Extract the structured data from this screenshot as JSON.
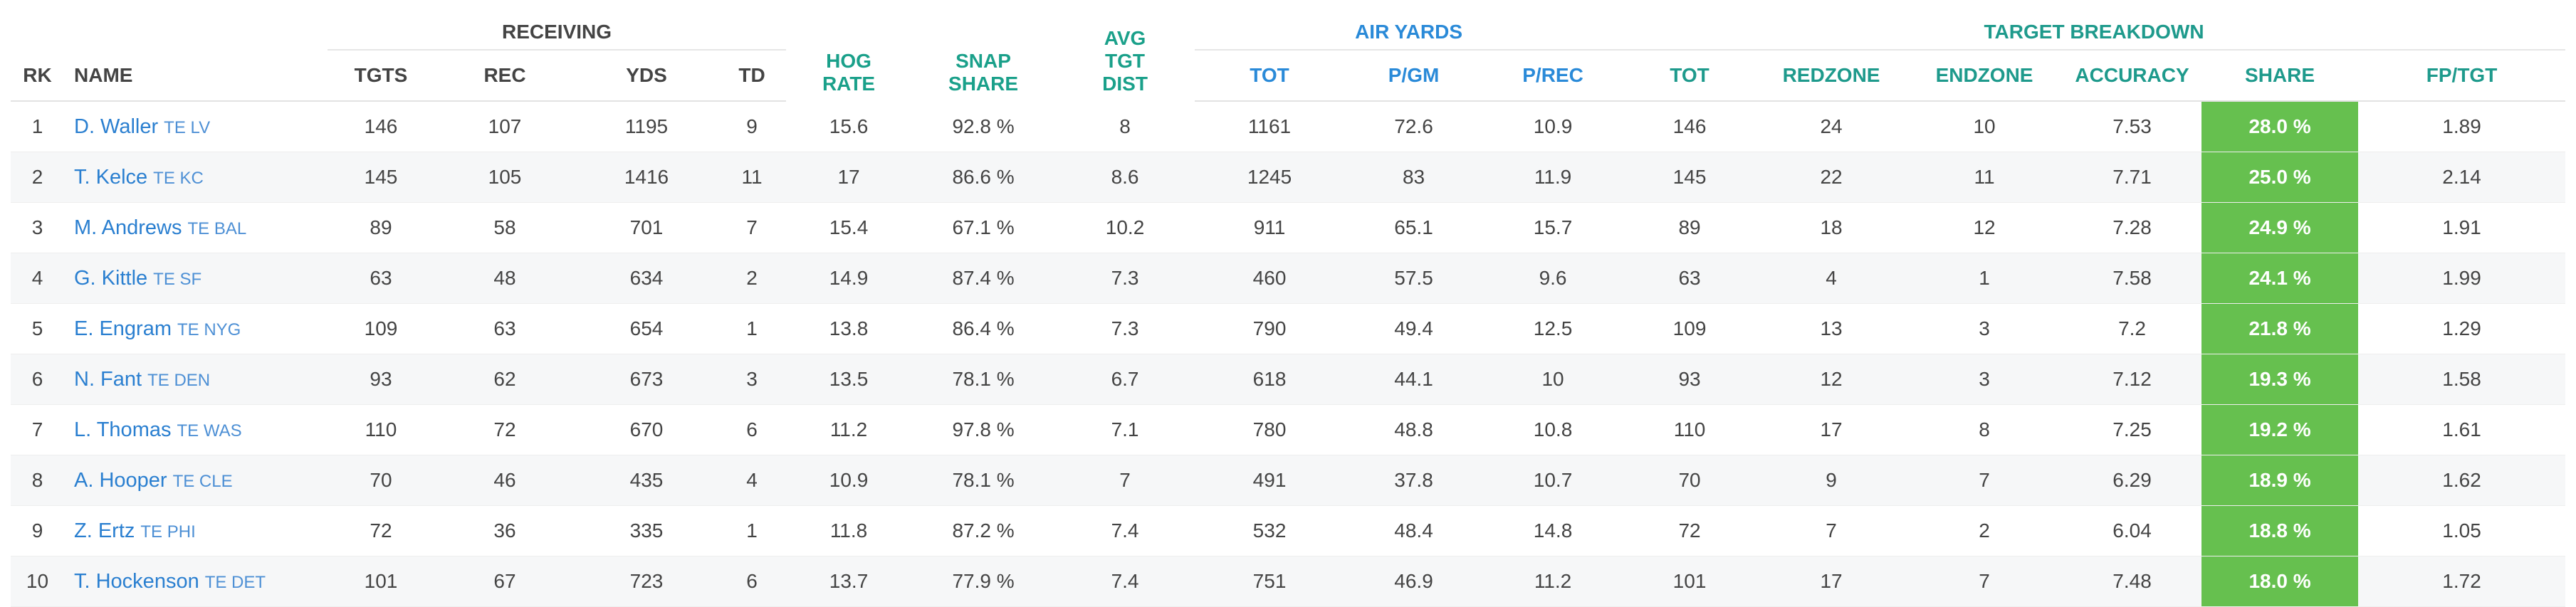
{
  "headers": {
    "groups": {
      "receiving": "RECEIVING",
      "hog_rate_line1": "HOG",
      "hog_rate_line2": "RATE",
      "snap_share_line1": "SNAP",
      "snap_share_line2": "SHARE",
      "avg_tgt_line1": "AVG",
      "avg_tgt_line2": "TGT",
      "avg_tgt_line3": "DIST",
      "air_yards": "AIR YARDS",
      "target_breakdown": "TARGET BREAKDOWN"
    },
    "columns": {
      "rk": "RK",
      "name": "NAME",
      "tgts": "TGTS",
      "rec": "REC",
      "yds": "YDS",
      "td": "TD",
      "air_tot": "TOT",
      "air_pgm": "P/GM",
      "air_prec": "P/REC",
      "tb_tot": "TOT",
      "redzone": "REDZONE",
      "endzone": "ENDZONE",
      "accuracy": "ACCURACY",
      "share": "SHARE",
      "fp_tgt": "FP/TGT"
    }
  },
  "colors": {
    "receiving_header": "#444444",
    "metric_header": "#1aa08a",
    "air_yards_header": "#2a8ad8",
    "target_breakdown_header": "#1e9a8c",
    "player_link": "#2a7fd0",
    "share_highlight": "#66c04f"
  },
  "rows": [
    {
      "rk": "1",
      "name": "D. Waller",
      "pos": "TE",
      "team": "LV",
      "tgts": "146",
      "rec": "107",
      "yds": "1195",
      "td": "9",
      "hog": "15.6",
      "snap": "92.8 %",
      "avg": "8",
      "air_tot": "1161",
      "air_pgm": "72.6",
      "air_prec": "10.9",
      "tb_tot": "146",
      "redzone": "24",
      "endzone": "10",
      "accuracy": "7.53",
      "share": "28.0 %",
      "fp_tgt": "1.89"
    },
    {
      "rk": "2",
      "name": "T. Kelce",
      "pos": "TE",
      "team": "KC",
      "tgts": "145",
      "rec": "105",
      "yds": "1416",
      "td": "11",
      "hog": "17",
      "snap": "86.6 %",
      "avg": "8.6",
      "air_tot": "1245",
      "air_pgm": "83",
      "air_prec": "11.9",
      "tb_tot": "145",
      "redzone": "22",
      "endzone": "11",
      "accuracy": "7.71",
      "share": "25.0 %",
      "fp_tgt": "2.14"
    },
    {
      "rk": "3",
      "name": "M. Andrews",
      "pos": "TE",
      "team": "BAL",
      "tgts": "89",
      "rec": "58",
      "yds": "701",
      "td": "7",
      "hog": "15.4",
      "snap": "67.1 %",
      "avg": "10.2",
      "air_tot": "911",
      "air_pgm": "65.1",
      "air_prec": "15.7",
      "tb_tot": "89",
      "redzone": "18",
      "endzone": "12",
      "accuracy": "7.28",
      "share": "24.9 %",
      "fp_tgt": "1.91"
    },
    {
      "rk": "4",
      "name": "G. Kittle",
      "pos": "TE",
      "team": "SF",
      "tgts": "63",
      "rec": "48",
      "yds": "634",
      "td": "2",
      "hog": "14.9",
      "snap": "87.4 %",
      "avg": "7.3",
      "air_tot": "460",
      "air_pgm": "57.5",
      "air_prec": "9.6",
      "tb_tot": "63",
      "redzone": "4",
      "endzone": "1",
      "accuracy": "7.58",
      "share": "24.1 %",
      "fp_tgt": "1.99"
    },
    {
      "rk": "5",
      "name": "E. Engram",
      "pos": "TE",
      "team": "NYG",
      "tgts": "109",
      "rec": "63",
      "yds": "654",
      "td": "1",
      "hog": "13.8",
      "snap": "86.4 %",
      "avg": "7.3",
      "air_tot": "790",
      "air_pgm": "49.4",
      "air_prec": "12.5",
      "tb_tot": "109",
      "redzone": "13",
      "endzone": "3",
      "accuracy": "7.2",
      "share": "21.8 %",
      "fp_tgt": "1.29"
    },
    {
      "rk": "6",
      "name": "N. Fant",
      "pos": "TE",
      "team": "DEN",
      "tgts": "93",
      "rec": "62",
      "yds": "673",
      "td": "3",
      "hog": "13.5",
      "snap": "78.1 %",
      "avg": "6.7",
      "air_tot": "618",
      "air_pgm": "44.1",
      "air_prec": "10",
      "tb_tot": "93",
      "redzone": "12",
      "endzone": "3",
      "accuracy": "7.12",
      "share": "19.3 %",
      "fp_tgt": "1.58"
    },
    {
      "rk": "7",
      "name": "L. Thomas",
      "pos": "TE",
      "team": "WAS",
      "tgts": "110",
      "rec": "72",
      "yds": "670",
      "td": "6",
      "hog": "11.2",
      "snap": "97.8 %",
      "avg": "7.1",
      "air_tot": "780",
      "air_pgm": "48.8",
      "air_prec": "10.8",
      "tb_tot": "110",
      "redzone": "17",
      "endzone": "8",
      "accuracy": "7.25",
      "share": "19.2 %",
      "fp_tgt": "1.61"
    },
    {
      "rk": "8",
      "name": "A. Hooper",
      "pos": "TE",
      "team": "CLE",
      "tgts": "70",
      "rec": "46",
      "yds": "435",
      "td": "4",
      "hog": "10.9",
      "snap": "78.1 %",
      "avg": "7",
      "air_tot": "491",
      "air_pgm": "37.8",
      "air_prec": "10.7",
      "tb_tot": "70",
      "redzone": "9",
      "endzone": "7",
      "accuracy": "6.29",
      "share": "18.9 %",
      "fp_tgt": "1.62"
    },
    {
      "rk": "9",
      "name": "Z. Ertz",
      "pos": "TE",
      "team": "PHI",
      "tgts": "72",
      "rec": "36",
      "yds": "335",
      "td": "1",
      "hog": "11.8",
      "snap": "87.2 %",
      "avg": "7.4",
      "air_tot": "532",
      "air_pgm": "48.4",
      "air_prec": "14.8",
      "tb_tot": "72",
      "redzone": "7",
      "endzone": "2",
      "accuracy": "6.04",
      "share": "18.8 %",
      "fp_tgt": "1.05"
    },
    {
      "rk": "10",
      "name": "T. Hockenson",
      "pos": "TE",
      "team": "DET",
      "tgts": "101",
      "rec": "67",
      "yds": "723",
      "td": "6",
      "hog": "13.7",
      "snap": "77.9 %",
      "avg": "7.4",
      "air_tot": "751",
      "air_pgm": "46.9",
      "air_prec": "11.2",
      "tb_tot": "101",
      "redzone": "17",
      "endzone": "7",
      "accuracy": "7.48",
      "share": "18.0 %",
      "fp_tgt": "1.72"
    }
  ]
}
